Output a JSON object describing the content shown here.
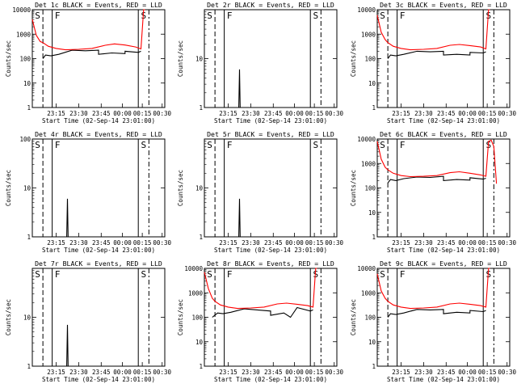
{
  "chart_data": [
    {
      "type": "line",
      "title": "Det 1c BLACK = Events, RED = LLD",
      "xlabel": "Start Time (02-Sep-14 23:01:00)",
      "ylabel": "Counts/sec",
      "xticks": [
        "23:15",
        "23:30",
        "23:45",
        "00:00",
        "00:15",
        "00:30"
      ],
      "yticks": [
        "1",
        "10",
        "100",
        "1000",
        "10000"
      ],
      "ylim": [
        1,
        10000
      ],
      "yscale": "log",
      "markers": [
        "S",
        "F",
        "S"
      ],
      "series": [
        {
          "name": "Events",
          "color": "#000000",
          "x": [
            0.08,
            0.1,
            0.14,
            0.2,
            0.3,
            0.4,
            0.5,
            0.5,
            0.6,
            0.7,
            0.7,
            0.8,
            0.82
          ],
          "y": [
            100,
            140,
            130,
            150,
            220,
            210,
            220,
            150,
            170,
            160,
            200,
            180,
            200
          ]
        },
        {
          "name": "LLD",
          "color": "#ff0000",
          "x": [
            0.0,
            0.03,
            0.06,
            0.08,
            0.12,
            0.18,
            0.25,
            0.35,
            0.45,
            0.55,
            0.62,
            0.7,
            0.78,
            0.82,
            0.84,
            0.85
          ],
          "y": [
            4000,
            900,
            500,
            450,
            320,
            260,
            230,
            240,
            260,
            350,
            400,
            360,
            300,
            250,
            10000,
            10000
          ]
        }
      ]
    },
    {
      "type": "line",
      "title": "Det 2r BLACK = Events, RED = LLD",
      "xlabel": "Start Time (02-Sep-14 23:01:00)",
      "ylabel": "Counts/sec",
      "xticks": [
        "23:15",
        "23:30",
        "23:45",
        "00:00",
        "00:15",
        "00:30"
      ],
      "yticks": [
        "1",
        "10"
      ],
      "ylim": [
        1,
        100
      ],
      "yscale": "log",
      "markers": [
        "S",
        "F",
        "S"
      ],
      "series": [
        {
          "name": "Events",
          "color": "#000000",
          "x": [
            0.26,
            0.265,
            0.27
          ],
          "y": [
            1,
            6,
            1
          ]
        }
      ]
    },
    {
      "type": "line",
      "title": "Det 3c BLACK = Events, RED = LLD",
      "xlabel": "Start Time (02-Sep-14 23:01:00)",
      "ylabel": "Counts/sec",
      "xticks": [
        "23:15",
        "23:30",
        "23:45",
        "00:00",
        "00:15",
        "00:30"
      ],
      "yticks": [
        "1",
        "10",
        "100",
        "1000",
        "10000"
      ],
      "ylim": [
        1,
        10000
      ],
      "yscale": "log",
      "markers": [
        "S",
        "F",
        "S"
      ],
      "series": [
        {
          "name": "Events",
          "color": "#000000",
          "x": [
            0.08,
            0.1,
            0.14,
            0.2,
            0.3,
            0.4,
            0.5,
            0.5,
            0.6,
            0.7,
            0.7,
            0.8,
            0.82
          ],
          "y": [
            100,
            140,
            130,
            150,
            200,
            190,
            200,
            140,
            150,
            140,
            180,
            170,
            190
          ]
        },
        {
          "name": "LLD",
          "color": "#ff0000",
          "x": [
            0.0,
            0.03,
            0.06,
            0.08,
            0.12,
            0.18,
            0.25,
            0.35,
            0.45,
            0.55,
            0.62,
            0.7,
            0.78,
            0.82,
            0.84,
            0.85
          ],
          "y": [
            6000,
            1200,
            600,
            450,
            320,
            260,
            230,
            240,
            260,
            350,
            380,
            340,
            300,
            250,
            10000,
            10000
          ]
        }
      ]
    },
    {
      "type": "line",
      "title": "Det 4r BLACK = Events, RED = LLD",
      "xlabel": "Start Time (02-Sep-14 23:01:00)",
      "ylabel": "Counts/sec",
      "xticks": [
        "23:15",
        "23:30",
        "23:45",
        "00:00",
        "00:15",
        "00:30"
      ],
      "yticks": [
        "1",
        "10",
        "100"
      ],
      "ylim": [
        1,
        100
      ],
      "yscale": "log",
      "markers": [
        "S",
        "F",
        "S"
      ],
      "series": [
        {
          "name": "Events",
          "color": "#000000",
          "x": [
            0.26,
            0.265,
            0.27
          ],
          "y": [
            1,
            6,
            1
          ]
        }
      ]
    },
    {
      "type": "line",
      "title": "Det 5r BLACK = Events, RED = LLD",
      "xlabel": "Start Time (02-Sep-14 23:01:00)",
      "ylabel": "Counts/sec",
      "xticks": [
        "23:15",
        "23:30",
        "23:45",
        "00:00",
        "00:15",
        "00:30"
      ],
      "yticks": [
        "1",
        "10"
      ],
      "ylim": [
        1,
        100
      ],
      "yscale": "log",
      "markers": [
        "S",
        "F",
        "S"
      ],
      "series": [
        {
          "name": "Events",
          "color": "#000000",
          "x": [
            0.26,
            0.265,
            0.27
          ],
          "y": [
            1,
            6,
            1
          ]
        }
      ]
    },
    {
      "type": "line",
      "title": "Det 6c BLACK = Events, RED = LLD",
      "xlabel": "Start Time (02-Sep-14 23:01:00)",
      "ylabel": "Counts/sec",
      "xticks": [
        "23:15",
        "23:30",
        "23:45",
        "00:00",
        "00:15",
        "00:30"
      ],
      "yticks": [
        "1",
        "10",
        "100",
        "1000",
        "10000"
      ],
      "ylim": [
        1,
        10000
      ],
      "yscale": "log",
      "markers": [
        "S",
        "F",
        "S"
      ],
      "series": [
        {
          "name": "Events",
          "color": "#000000",
          "x": [
            0.08,
            0.1,
            0.14,
            0.2,
            0.3,
            0.4,
            0.5,
            0.5,
            0.6,
            0.7,
            0.7,
            0.8,
            0.82
          ],
          "y": [
            160,
            220,
            200,
            240,
            280,
            270,
            300,
            200,
            220,
            210,
            260,
            230,
            250
          ]
        },
        {
          "name": "LLD",
          "color": "#ff0000",
          "x": [
            0.0,
            0.03,
            0.06,
            0.08,
            0.12,
            0.18,
            0.25,
            0.35,
            0.45,
            0.55,
            0.62,
            0.7,
            0.78,
            0.82,
            0.84,
            0.86,
            0.88,
            0.9
          ],
          "y": [
            8000,
            1500,
            700,
            550,
            400,
            320,
            290,
            300,
            320,
            420,
            460,
            400,
            340,
            300,
            8000,
            9000,
            5000,
            150
          ]
        }
      ]
    },
    {
      "type": "line",
      "title": "Det 7r BLACK = Events, RED = LLD",
      "xlabel": "Start Time (02-Sep-14 23:01:00)",
      "ylabel": "Counts/sec",
      "xticks": [
        "23:15",
        "23:30",
        "23:45",
        "00:00",
        "00:15",
        "00:30"
      ],
      "yticks": [
        "1",
        "10"
      ],
      "ylim": [
        1,
        100
      ],
      "yscale": "log",
      "markers": [
        "S",
        "F",
        "S"
      ],
      "series": [
        {
          "name": "Events",
          "color": "#000000",
          "x": [
            0.26,
            0.265,
            0.27
          ],
          "y": [
            1,
            7,
            1
          ]
        }
      ]
    },
    {
      "type": "line",
      "title": "Det 8r BLACK = Events, RED = LLD",
      "xlabel": "Start Time (02-Sep-14 23:01:00)",
      "ylabel": "Counts/sec",
      "xticks": [
        "23:15",
        "23:30",
        "23:45",
        "00:00",
        "00:15",
        "00:30"
      ],
      "yticks": [
        "1",
        "10",
        "100",
        "1000",
        "10000"
      ],
      "ylim": [
        1,
        10000
      ],
      "yscale": "log",
      "markers": [
        "S",
        "F",
        "S"
      ],
      "series": [
        {
          "name": "Events",
          "color": "#000000",
          "x": [
            0.06,
            0.1,
            0.14,
            0.2,
            0.3,
            0.4,
            0.5,
            0.5,
            0.6,
            0.65,
            0.7,
            0.8,
            0.82
          ],
          "y": [
            100,
            150,
            140,
            160,
            220,
            200,
            180,
            120,
            150,
            100,
            250,
            180,
            200
          ]
        },
        {
          "name": "LLD",
          "color": "#ff0000",
          "x": [
            0.0,
            0.03,
            0.06,
            0.08,
            0.12,
            0.18,
            0.25,
            0.35,
            0.45,
            0.55,
            0.62,
            0.7,
            0.78,
            0.82,
            0.84,
            0.85
          ],
          "y": [
            7000,
            1500,
            600,
            450,
            320,
            260,
            230,
            240,
            260,
            350,
            380,
            340,
            300,
            260,
            10000,
            10000
          ]
        }
      ]
    },
    {
      "type": "line",
      "title": "Det 9c BLACK = Events, RED = LLD",
      "xlabel": "Start Time (02-Sep-14 23:01:00)",
      "ylabel": "Counts/sec",
      "xticks": [
        "23:15",
        "23:30",
        "23:45",
        "00:00",
        "00:15",
        "00:30"
      ],
      "yticks": [
        "1",
        "10",
        "100",
        "1000",
        "10000"
      ],
      "ylim": [
        1,
        10000
      ],
      "yscale": "log",
      "markers": [
        "S",
        "F",
        "S"
      ],
      "series": [
        {
          "name": "Events",
          "color": "#000000",
          "x": [
            0.08,
            0.1,
            0.14,
            0.2,
            0.3,
            0.4,
            0.5,
            0.5,
            0.6,
            0.7,
            0.7,
            0.8,
            0.82
          ],
          "y": [
            100,
            140,
            130,
            150,
            210,
            200,
            210,
            140,
            160,
            150,
            190,
            170,
            190
          ]
        },
        {
          "name": "LLD",
          "color": "#ff0000",
          "x": [
            0.0,
            0.03,
            0.06,
            0.08,
            0.12,
            0.18,
            0.25,
            0.35,
            0.45,
            0.55,
            0.62,
            0.7,
            0.78,
            0.82,
            0.84,
            0.85
          ],
          "y": [
            6000,
            1200,
            600,
            450,
            320,
            260,
            230,
            240,
            260,
            350,
            380,
            340,
            300,
            260,
            10000,
            10000
          ]
        }
      ]
    }
  ]
}
